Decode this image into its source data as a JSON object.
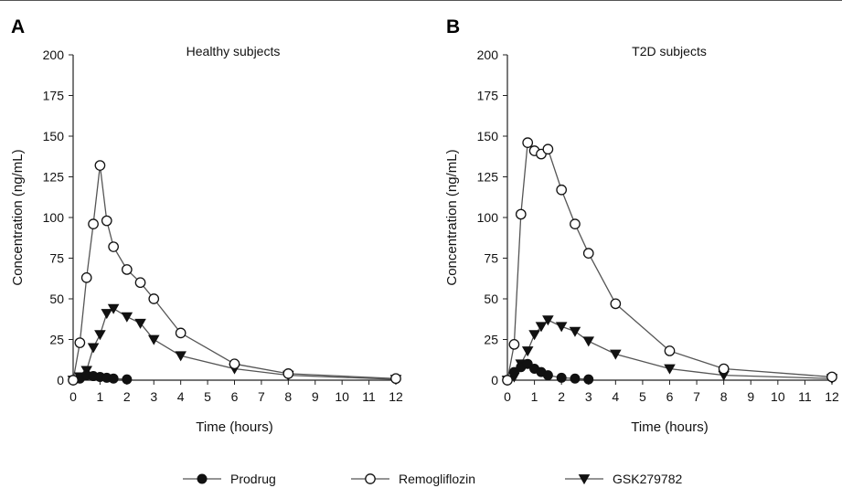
{
  "chart_data": [
    {
      "type": "line",
      "panel_label": "A",
      "title": "Healthy subjects",
      "xlabel": "Time (hours)",
      "ylabel": "Concentration (ng/mL)",
      "xlim": [
        0,
        12
      ],
      "ylim": [
        0,
        200
      ],
      "x_ticks": [
        "0",
        "1",
        "2",
        "3",
        "4",
        "5",
        "6",
        "7",
        "8",
        "9",
        "10",
        "11",
        "12"
      ],
      "y_ticks": [
        "0",
        "25",
        "50",
        "75",
        "100",
        "125",
        "150",
        "175",
        "200"
      ],
      "grid": false,
      "series": [
        {
          "name": "Prodrug",
          "marker": "filled-circle",
          "x": [
            0,
            0.25,
            0.5,
            0.75,
            1,
            1.25,
            1.5,
            2
          ],
          "y": [
            0,
            1,
            3,
            2.5,
            2,
            1.5,
            1,
            0.5
          ]
        },
        {
          "name": "Remogliflozin",
          "marker": "open-circle",
          "x": [
            0,
            0.25,
            0.5,
            0.75,
            1,
            1.25,
            1.5,
            2,
            2.5,
            3,
            4,
            6,
            8,
            12
          ],
          "y": [
            0,
            23,
            63,
            96,
            132,
            98,
            82,
            68,
            60,
            50,
            29,
            10,
            4,
            1
          ]
        },
        {
          "name": "GSK279782",
          "marker": "filled-triangle-down",
          "x": [
            0,
            0.25,
            0.5,
            0.75,
            1,
            1.25,
            1.5,
            2,
            2.5,
            3,
            4,
            6,
            8,
            12
          ],
          "y": [
            0,
            2,
            6,
            20,
            28,
            41,
            44,
            39,
            35,
            25,
            15,
            7,
            3,
            0.5
          ]
        }
      ]
    },
    {
      "type": "line",
      "panel_label": "B",
      "title": "T2D subjects",
      "xlabel": "Time (hours)",
      "ylabel": "Concentration (ng/mL)",
      "xlim": [
        0,
        12
      ],
      "ylim": [
        0,
        200
      ],
      "x_ticks": [
        "0",
        "1",
        "2",
        "3",
        "4",
        "5",
        "6",
        "7",
        "8",
        "9",
        "10",
        "11",
        "12"
      ],
      "y_ticks": [
        "0",
        "25",
        "50",
        "75",
        "100",
        "125",
        "150",
        "175",
        "200"
      ],
      "grid": false,
      "series": [
        {
          "name": "Prodrug",
          "marker": "filled-circle",
          "x": [
            0,
            0.25,
            0.5,
            0.75,
            1,
            1.25,
            1.5,
            2,
            2.5,
            3
          ],
          "y": [
            0,
            5,
            8,
            10,
            7,
            5,
            3,
            1.5,
            1,
            0.5
          ]
        },
        {
          "name": "Remogliflozin",
          "marker": "open-circle",
          "x": [
            0,
            0.25,
            0.5,
            0.75,
            1,
            1.25,
            1.5,
            2,
            2.5,
            3,
            4,
            6,
            8,
            12
          ],
          "y": [
            0,
            22,
            102,
            146,
            141,
            139,
            142,
            117,
            96,
            78,
            47,
            18,
            7,
            2
          ]
        },
        {
          "name": "GSK279782",
          "marker": "filled-triangle-down",
          "x": [
            0,
            0.25,
            0.5,
            0.75,
            1,
            1.25,
            1.5,
            2,
            2.5,
            3,
            4,
            6,
            8,
            12
          ],
          "y": [
            0,
            2,
            10,
            18,
            28,
            33,
            37,
            33,
            30,
            24,
            16,
            7,
            3,
            1
          ]
        }
      ]
    }
  ],
  "legend": {
    "placement": "bottom",
    "items": [
      {
        "label": "Prodrug",
        "marker": "filled-circle"
      },
      {
        "label": "Remogliflozin",
        "marker": "open-circle"
      },
      {
        "label": "GSK279782",
        "marker": "filled-triangle-down"
      }
    ]
  },
  "colors": {
    "line": "#555555",
    "marker": "#111111",
    "axis": "#222222"
  }
}
